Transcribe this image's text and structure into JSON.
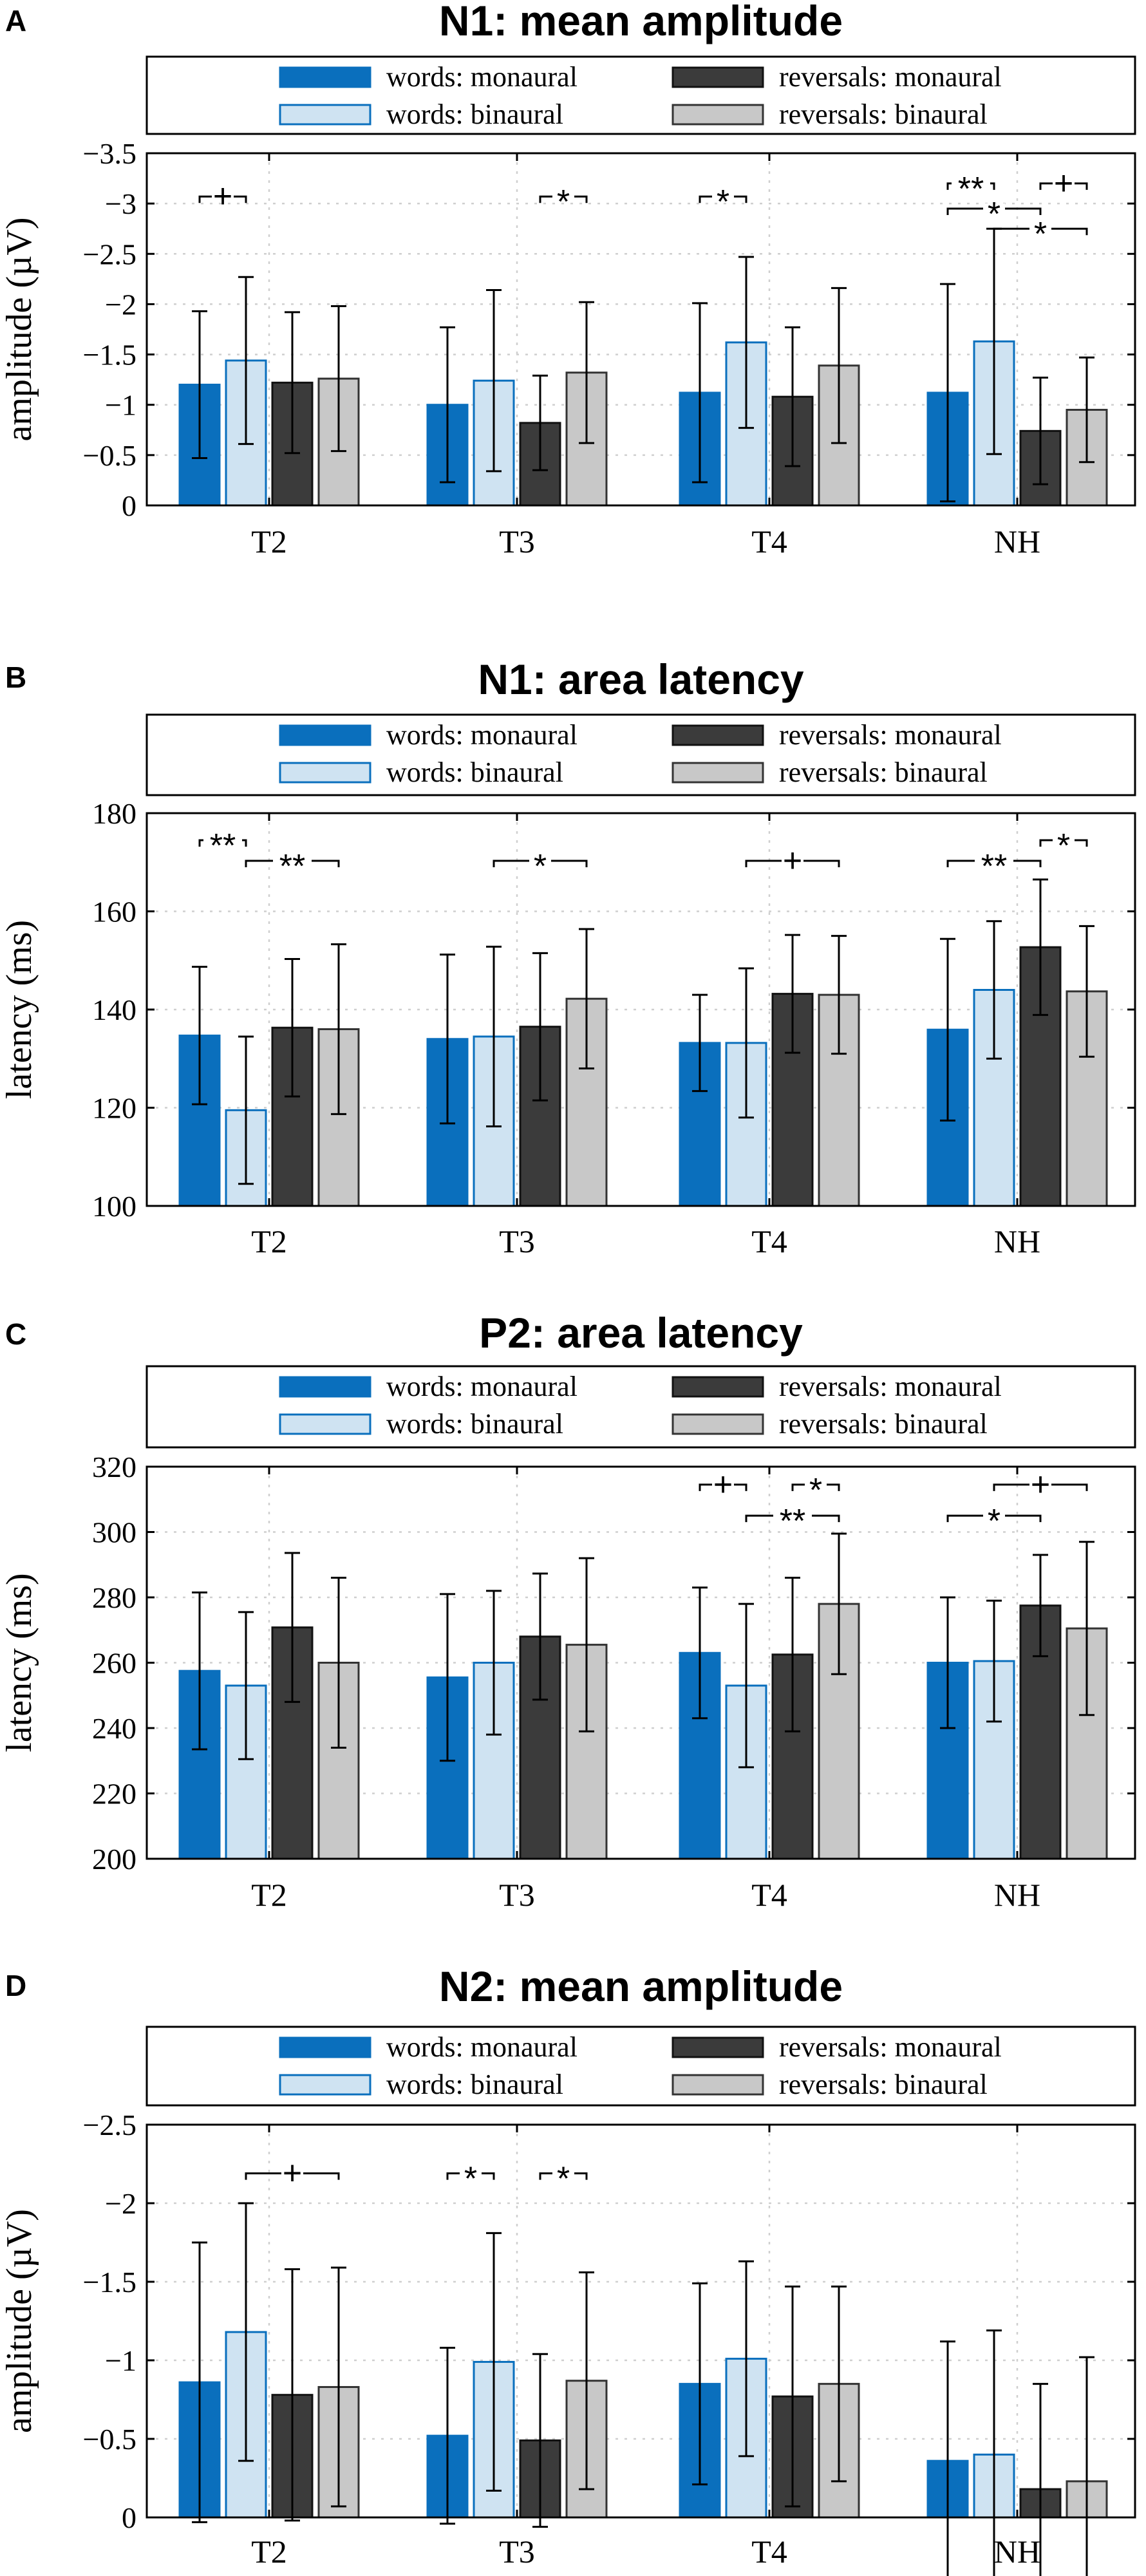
{
  "legend": {
    "words_monaural": "words: monaural",
    "words_binaural": "words: binaural",
    "reversals_monaural": "reversals: monaural",
    "reversals_binaural": "reversals: binaural"
  },
  "colors": {
    "words_monaural": "#0a6fbd",
    "words_binaural": "#cfe3f2",
    "words_binaural_edge": "#0a6fbd",
    "reversals_monaural": "#3b3b3b",
    "reversals_binaural": "#c8c8c8"
  },
  "chart_data": [
    {
      "panel": "A",
      "type": "bar",
      "title": "N1: mean amplitude",
      "ylabel": "amplitude (µV)",
      "reversed_y": true,
      "ylim": [
        0,
        -3.5
      ],
      "yticks": [
        0,
        -0.5,
        -1,
        -1.5,
        -2,
        -2.5,
        -3,
        -3.5
      ],
      "ytick_labels": [
        "0",
        "−0.5",
        "−1",
        "−1.5",
        "−2",
        "−2.5",
        "−3",
        "−3.5"
      ],
      "categories": [
        "T2",
        "T3",
        "T4",
        "NH"
      ],
      "series": [
        {
          "name": "words: monaural",
          "values": [
            -1.2,
            -1.0,
            -1.12,
            -1.12
          ],
          "err": [
            0.73,
            0.77,
            0.89,
            1.08
          ]
        },
        {
          "name": "words: binaural",
          "values": [
            -1.44,
            -1.24,
            -1.62,
            -1.63
          ],
          "err": [
            0.83,
            0.9,
            0.85,
            1.12
          ]
        },
        {
          "name": "reversals: monaural",
          "values": [
            -1.22,
            -0.82,
            -1.08,
            -0.74
          ],
          "err": [
            0.7,
            0.47,
            0.69,
            0.53
          ]
        },
        {
          "name": "reversals: binaural",
          "values": [
            -1.26,
            -1.32,
            -1.39,
            -0.95
          ],
          "err": [
            0.72,
            0.7,
            0.77,
            0.52
          ]
        }
      ],
      "significance": [
        {
          "cat": 0,
          "from": 0,
          "to": 1,
          "label": "+",
          "y": -3.07
        },
        {
          "cat": 1,
          "from": 2,
          "to": 3,
          "label": "*",
          "y": -3.07
        },
        {
          "cat": 2,
          "from": 0,
          "to": 1,
          "label": "*",
          "y": -3.07
        },
        {
          "cat": 3,
          "from": 0,
          "to": 1,
          "label": "**",
          "y": -3.2
        },
        {
          "cat": 3,
          "from": 2,
          "to": 3,
          "label": "+",
          "y": -3.2
        },
        {
          "cat": 3,
          "from": 0,
          "to": 2,
          "label": "*",
          "y": -2.95
        },
        {
          "cat": 3,
          "from": 1,
          "to": 3,
          "label": "*",
          "y": -2.75
        }
      ]
    },
    {
      "panel": "B",
      "type": "bar",
      "title": "N1: area latency",
      "ylabel": "latency (ms)",
      "reversed_y": false,
      "ylim": [
        100,
        180
      ],
      "yticks": [
        100,
        120,
        140,
        160,
        180
      ],
      "ytick_labels": [
        "100",
        "120",
        "140",
        "160",
        "180"
      ],
      "categories": [
        "T2",
        "T3",
        "T4",
        "NH"
      ],
      "series": [
        {
          "name": "words: monaural",
          "values": [
            134.7,
            134.0,
            133.2,
            135.9
          ],
          "err": [
            14.0,
            17.2,
            9.8,
            18.5
          ]
        },
        {
          "name": "words: binaural",
          "values": [
            119.5,
            134.5,
            133.2,
            144.0
          ],
          "err": [
            15.0,
            18.3,
            15.2,
            14.0
          ]
        },
        {
          "name": "reversals: monaural",
          "values": [
            136.3,
            136.5,
            143.2,
            152.7
          ],
          "err": [
            14.0,
            15.0,
            12.0,
            13.8
          ]
        },
        {
          "name": "reversals: binaural",
          "values": [
            136.0,
            142.2,
            143.0,
            143.7
          ],
          "err": [
            17.3,
            14.2,
            12.0,
            13.3
          ]
        }
      ],
      "significance": [
        {
          "cat": 0,
          "from": 0,
          "to": 1,
          "label": "**",
          "y": 174.5
        },
        {
          "cat": 0,
          "from": 1,
          "to": 3,
          "label": "**",
          "y": 170.3
        },
        {
          "cat": 1,
          "from": 1,
          "to": 3,
          "label": "*",
          "y": 170.3
        },
        {
          "cat": 2,
          "from": 1,
          "to": 3,
          "label": "+",
          "y": 170.3
        },
        {
          "cat": 3,
          "from": 0,
          "to": 2,
          "label": "**",
          "y": 170.3
        },
        {
          "cat": 3,
          "from": 2,
          "to": 3,
          "label": "*",
          "y": 174.5
        }
      ]
    },
    {
      "panel": "C",
      "type": "bar",
      "title": "P2: area latency",
      "ylabel": "latency (ms)",
      "reversed_y": false,
      "ylim": [
        200,
        320
      ],
      "yticks": [
        200,
        220,
        240,
        260,
        280,
        300,
        320
      ],
      "ytick_labels": [
        "200",
        "220",
        "240",
        "260",
        "280",
        "300",
        "320"
      ],
      "categories": [
        "T2",
        "T3",
        "T4",
        "NH"
      ],
      "series": [
        {
          "name": "words: monaural",
          "values": [
            257.5,
            255.5,
            263.0,
            260.0
          ],
          "err": [
            24.0,
            25.5,
            20.0,
            20.0
          ]
        },
        {
          "name": "words: binaural",
          "values": [
            253.0,
            260.0,
            253.0,
            260.5
          ],
          "err": [
            22.5,
            22.0,
            25.0,
            18.5
          ]
        },
        {
          "name": "reversals: monaural",
          "values": [
            270.8,
            268.0,
            262.5,
            277.5
          ],
          "err": [
            22.8,
            19.3,
            23.5,
            15.5
          ]
        },
        {
          "name": "reversals: binaural",
          "values": [
            260.0,
            265.5,
            278.0,
            270.5
          ],
          "err": [
            26.0,
            26.5,
            21.5,
            26.5
          ]
        }
      ],
      "significance": [
        {
          "cat": 2,
          "from": 0,
          "to": 1,
          "label": "+",
          "y": 314.5
        },
        {
          "cat": 2,
          "from": 2,
          "to": 3,
          "label": "*",
          "y": 314.5
        },
        {
          "cat": 2,
          "from": 1,
          "to": 3,
          "label": "**",
          "y": 305.0
        },
        {
          "cat": 3,
          "from": 1,
          "to": 3,
          "label": "+",
          "y": 314.5
        },
        {
          "cat": 3,
          "from": 0,
          "to": 2,
          "label": "*",
          "y": 305.0
        }
      ]
    },
    {
      "panel": "D",
      "type": "bar",
      "title": "N2: mean amplitude",
      "ylabel": "amplitude (µV)",
      "reversed_y": true,
      "ylim": [
        0,
        -2.5
      ],
      "yticks": [
        0,
        -0.5,
        -1,
        -1.5,
        -2,
        -2.5
      ],
      "ytick_labels": [
        "0",
        "−0.5",
        "−1",
        "−1.5",
        "−2",
        "−2.5"
      ],
      "categories": [
        "T2",
        "T3",
        "T4",
        "NH"
      ],
      "series": [
        {
          "name": "words: monaural",
          "values": [
            -0.86,
            -0.52,
            -0.85,
            -0.36
          ],
          "err": [
            0.89,
            0.56,
            0.64,
            0.76
          ]
        },
        {
          "name": "words: binaural",
          "values": [
            -1.18,
            -0.99,
            -1.01,
            -0.4
          ],
          "err": [
            0.82,
            0.82,
            0.62,
            0.79
          ]
        },
        {
          "name": "reversals: monaural",
          "values": [
            -0.78,
            -0.49,
            -0.77,
            -0.18
          ],
          "err": [
            0.8,
            0.55,
            0.7,
            0.67
          ]
        },
        {
          "name": "reversals: binaural",
          "values": [
            -0.83,
            -0.87,
            -0.85,
            -0.23
          ],
          "err": [
            0.76,
            0.69,
            0.62,
            0.79
          ]
        }
      ],
      "significance": [
        {
          "cat": 0,
          "from": 1,
          "to": 3,
          "label": "+",
          "y": -2.19
        },
        {
          "cat": 1,
          "from": 0,
          "to": 1,
          "label": "*",
          "y": -2.19
        },
        {
          "cat": 1,
          "from": 2,
          "to": 3,
          "label": "*",
          "y": -2.19
        }
      ]
    }
  ]
}
